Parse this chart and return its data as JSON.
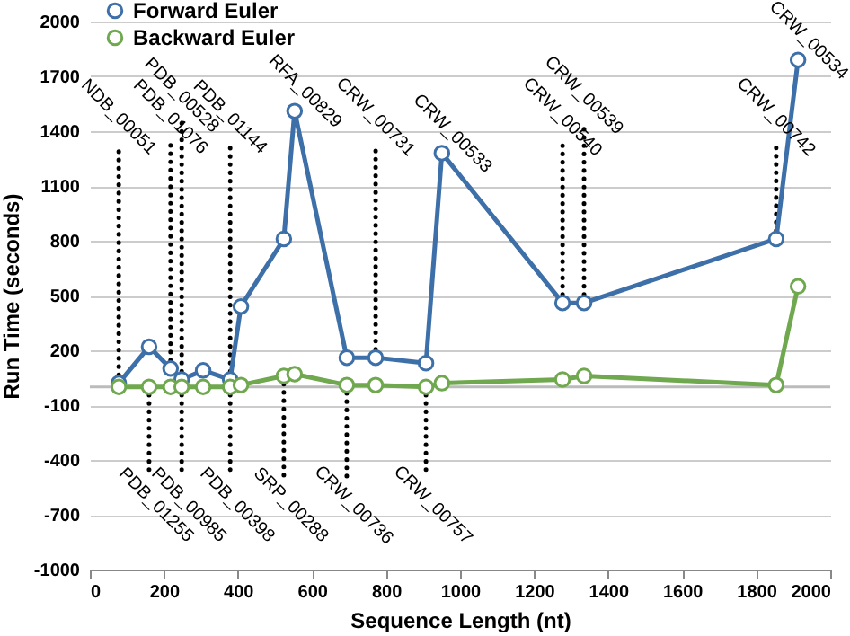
{
  "chart_data": {
    "type": "line",
    "xlabel": "Sequence Length (nt)",
    "ylabel": "Run Time (seconds)",
    "x": [
      78,
      160,
      218,
      248,
      306,
      379,
      408,
      524,
      553,
      694,
      772,
      908,
      951,
      1277,
      1335,
      1854,
      1913
    ],
    "series": [
      {
        "name": "Forward Euler",
        "color": "#3d6fa8",
        "values": [
          20,
          220,
          100,
          40,
          90,
          40,
          440,
          810,
          1510,
          160,
          160,
          130,
          1280,
          460,
          460,
          810,
          1790
        ]
      },
      {
        "name": "Backward Euler",
        "color": "#6fa84e",
        "values": [
          0,
          0,
          0,
          0,
          0,
          0,
          10,
          60,
          70,
          10,
          10,
          0,
          20,
          40,
          60,
          10,
          550
        ]
      }
    ],
    "xlim": [
      0,
      2000
    ],
    "xticks": [
      0,
      200,
      400,
      600,
      800,
      1000,
      1200,
      1400,
      1600,
      1800,
      2000
    ],
    "ylim": [
      -1000,
      2000
    ],
    "yticks": [
      -1000,
      -700,
      -400,
      -100,
      200,
      500,
      800,
      1100,
      1400,
      1700,
      2000
    ],
    "grid": "y",
    "legend": "top left",
    "marker": "circle",
    "line_style": "solid",
    "ref_lines": [
      {
        "axis": "y",
        "value": 0,
        "color": "#bbbbbb"
      }
    ],
    "annotations": [
      {
        "text": "NDB_00051",
        "x": 78,
        "y": 20
      },
      {
        "text": "PDB_01076",
        "x": 218,
        "y": 100
      },
      {
        "text": "PDB_00528",
        "x": 248,
        "y": 40
      },
      {
        "text": "PDB_01144",
        "x": 379,
        "y": 40
      },
      {
        "text": "RFA_00829",
        "x": 553,
        "y": 1510
      },
      {
        "text": "CRW_00731",
        "x": 772,
        "y": 160
      },
      {
        "text": "CRW_00533",
        "x": 951,
        "y": 1280
      },
      {
        "text": "CRW_00540",
        "x": 1277,
        "y": 460
      },
      {
        "text": "CRW_00539",
        "x": 1335,
        "y": 460
      },
      {
        "text": "CRW_00742",
        "x": 1854,
        "y": 810
      },
      {
        "text": "CRW_00534",
        "x": 1913,
        "y": 1790
      },
      {
        "text": "PDB_01255",
        "x": 160,
        "y": 0
      },
      {
        "text": "PDB_00985",
        "x": 248,
        "y": 0
      },
      {
        "text": "PDB_00398",
        "x": 379,
        "y": 0
      },
      {
        "text": "SRP_00288",
        "x": 524,
        "y": 60
      },
      {
        "text": "CRW_00736",
        "x": 694,
        "y": 10
      },
      {
        "text": "CRW_00757",
        "x": 908,
        "y": 0
      }
    ]
  }
}
